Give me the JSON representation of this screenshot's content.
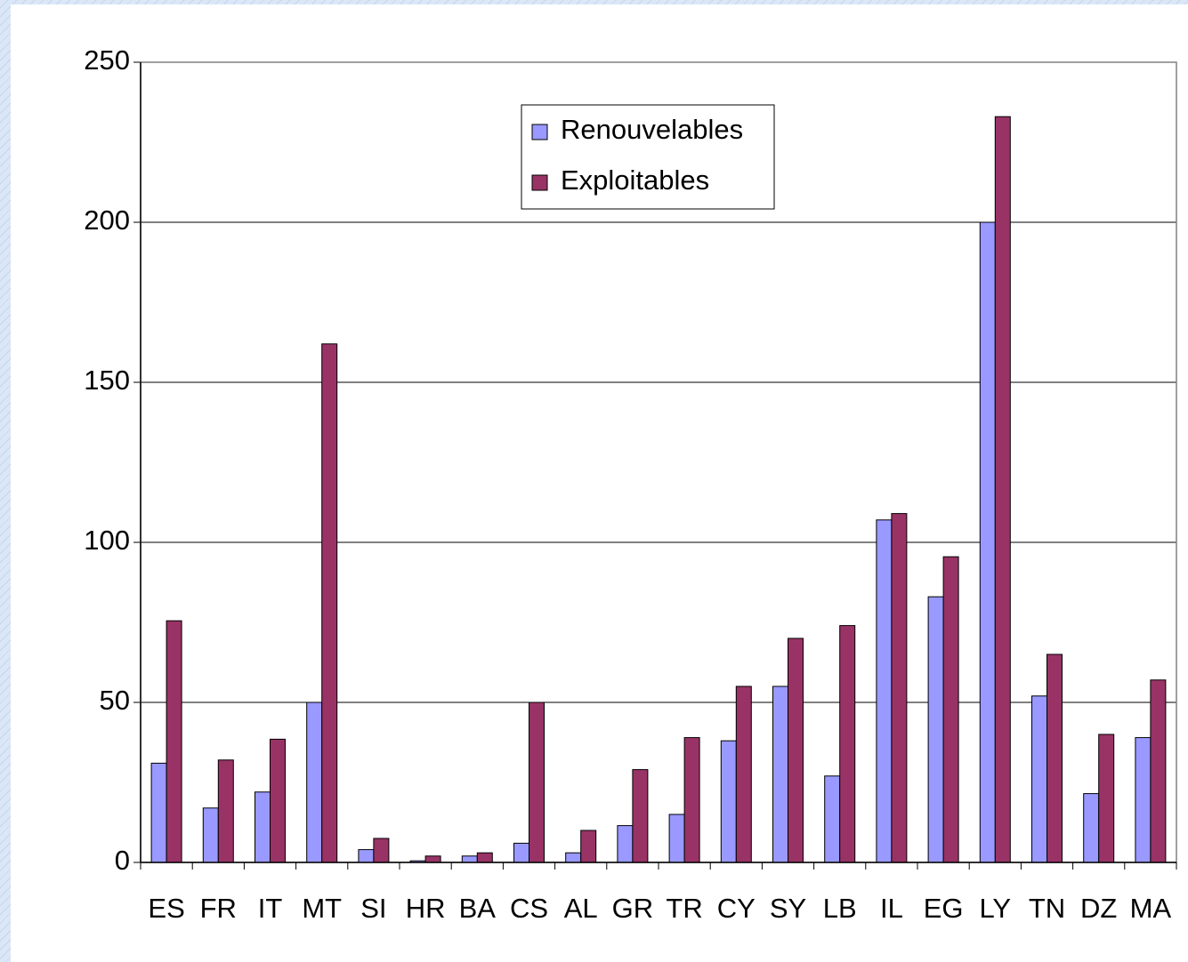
{
  "chart_data": {
    "type": "bar",
    "categories": [
      "ES",
      "FR",
      "IT",
      "MT",
      "SI",
      "HR",
      "BA",
      "CS",
      "AL",
      "GR",
      "TR",
      "CY",
      "SY",
      "LB",
      "IL",
      "EG",
      "LY",
      "TN",
      "DZ",
      "MA"
    ],
    "series": [
      {
        "name": "Renouvelables",
        "color": "#9999ff",
        "values": [
          31,
          17,
          22,
          50,
          4,
          0.5,
          2,
          6,
          3,
          11.5,
          15,
          38,
          55,
          27,
          107,
          83,
          200,
          52,
          21.5,
          39
        ]
      },
      {
        "name": "Exploitables",
        "color": "#993366",
        "values": [
          75.5,
          32,
          38.5,
          162,
          7.5,
          2,
          3,
          50,
          10,
          29,
          39,
          55,
          70,
          74,
          109,
          95.5,
          233,
          65,
          40,
          57
        ]
      }
    ],
    "ylim": [
      0,
      250
    ],
    "yticks": [
      0,
      50,
      100,
      150,
      200,
      250
    ],
    "grid": true
  }
}
